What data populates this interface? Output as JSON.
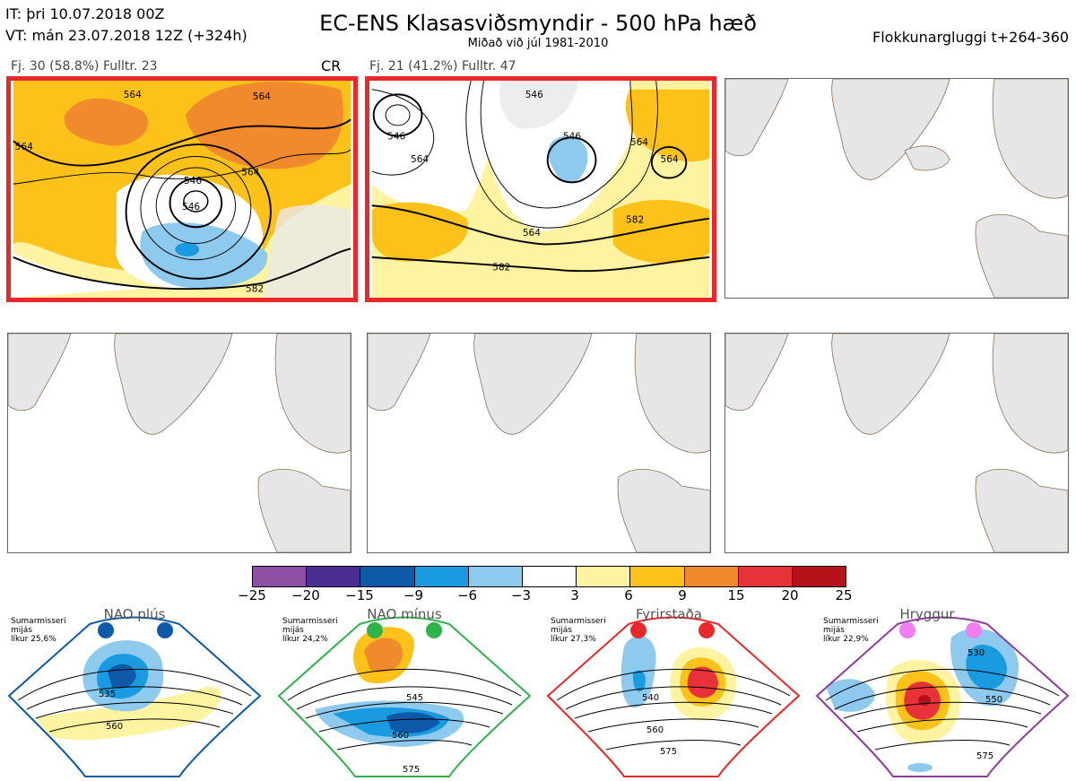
{
  "header": {
    "it_line": "IT: þri 10.07.2018 00Z",
    "vt_line": "VT: mán 23.07.2018 12Z  (+324h)",
    "title": "EC-ENS Klasasviðsmyndir - 500 hPa hæð",
    "subtitle": "Miðað við júl 1981-2010",
    "window": "Flokkunargluggi t+264-360"
  },
  "panels": [
    {
      "label": "Fj. 30 (58.8%)   Fulltr. 23",
      "tag": "CR",
      "selected": true,
      "contour_labels": [
        "564",
        "564",
        "564",
        "546",
        "582",
        "546",
        "564"
      ]
    },
    {
      "label": "Fj. 21 (41.2%)   Fulltr. 47",
      "tag": "",
      "selected": true,
      "contour_labels": [
        "546",
        "546",
        "564",
        "546",
        "564",
        "564",
        "564",
        "582",
        "582"
      ]
    },
    {
      "label": "",
      "tag": "",
      "selected": false,
      "contour_labels": []
    },
    {
      "label": "",
      "tag": "",
      "selected": false,
      "contour_labels": []
    },
    {
      "label": "",
      "tag": "",
      "selected": false,
      "contour_labels": []
    },
    {
      "label": "",
      "tag": "",
      "selected": false,
      "contour_labels": []
    }
  ],
  "colorbar": {
    "ticks": [
      "−25",
      "−20",
      "−15",
      "−9",
      "−6",
      "−3",
      "3",
      "6",
      "9",
      "15",
      "20",
      "25"
    ],
    "colors": [
      "#8c4fa3",
      "#4b2e91",
      "#0f5aa8",
      "#1a9be0",
      "#8ec9ee",
      "#ffffff",
      "#fdf3a0",
      "#fcc21a",
      "#f08a2c",
      "#e8323a",
      "#b5121b"
    ]
  },
  "regimes": [
    {
      "name": "NAO plús",
      "note": "Sumarmisseri\nmijás\nlíkur 25,6%",
      "accent": "#0f5aa8",
      "contour_labels": [
        "535",
        "560"
      ]
    },
    {
      "name": "NAO mínus",
      "note": "Sumarmisseri\nmijás\nlíkur 24,2%",
      "accent": "#2db34a",
      "contour_labels": [
        "545",
        "560",
        "575"
      ]
    },
    {
      "name": "Fyrirstaða",
      "note": "Sumarmisseri\nmijás\nlíkur 27,3%",
      "accent": "#e8282a",
      "contour_labels": [
        "540",
        "560",
        "575"
      ]
    },
    {
      "name": "Hryggur",
      "note": "Sumarmisseri\nmijás\nlíkur 22,9%",
      "accent": "#8e3b9b",
      "contour_labels": [
        "530",
        "550",
        "575"
      ]
    }
  ]
}
